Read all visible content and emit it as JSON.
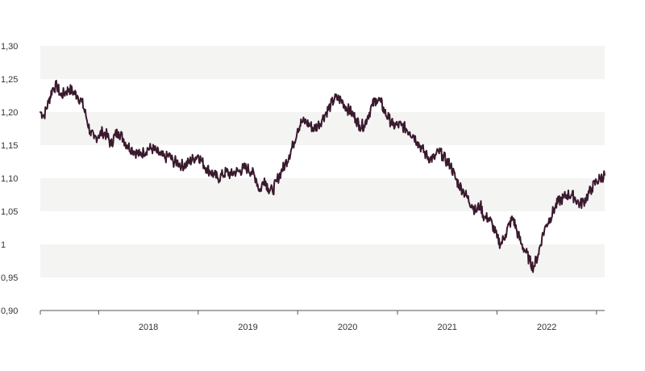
{
  "colors": {
    "line": "#3a1a2e",
    "band": "#f4f4f3",
    "axis": "#555555",
    "text": "#333333"
  },
  "chart_data": {
    "type": "line",
    "title": "",
    "xlabel": "",
    "ylabel": "",
    "ylim": [
      0.9,
      1.3
    ],
    "xlim": [
      "2017-06-01",
      "2023-01-31"
    ],
    "y_tick_values": [
      0.9,
      0.95,
      1.0,
      1.05,
      1.1,
      1.15,
      1.2,
      1.25,
      1.3
    ],
    "y_tick_labels": [
      "0,90",
      "0,95",
      "1",
      "1,05",
      "1,10",
      "1,15",
      "1,20",
      "1,25",
      "1,30"
    ],
    "x_tick_labels": [
      "2018",
      "2019",
      "2020",
      "2021",
      "2022"
    ],
    "grid": "alternating horizontal bands",
    "legend": "none",
    "series": [
      {
        "x": [
          "2017-06-01",
          "2017-06-15",
          "2017-07-01",
          "2017-07-15",
          "2017-08-01",
          "2017-08-15",
          "2017-09-01",
          "2017-09-15",
          "2017-10-01",
          "2017-10-15",
          "2017-11-01",
          "2017-11-15",
          "2017-12-01",
          "2017-12-15",
          "2018-01-01",
          "2018-01-15",
          "2018-02-01",
          "2018-02-15",
          "2018-03-01",
          "2018-03-15",
          "2018-04-01",
          "2018-04-15",
          "2018-05-01",
          "2018-05-15",
          "2018-06-01",
          "2018-06-15",
          "2018-07-01",
          "2018-07-15",
          "2018-08-01",
          "2018-08-15",
          "2018-09-01",
          "2018-09-15",
          "2018-10-01",
          "2018-10-15",
          "2018-11-01",
          "2018-11-15",
          "2018-12-01",
          "2018-12-15",
          "2019-01-01",
          "2019-01-15",
          "2019-02-01",
          "2019-02-15",
          "2019-03-01",
          "2019-03-15",
          "2019-04-01",
          "2019-04-15",
          "2019-05-01",
          "2019-05-15",
          "2019-06-01",
          "2019-06-15",
          "2019-07-01",
          "2019-07-15",
          "2019-08-01",
          "2019-08-15",
          "2019-09-01",
          "2019-09-15",
          "2019-10-01",
          "2019-10-15",
          "2019-11-01",
          "2019-11-15",
          "2019-12-01",
          "2019-12-15",
          "2020-01-01",
          "2020-01-15",
          "2020-02-01",
          "2020-02-15",
          "2020-03-01",
          "2020-03-15",
          "2020-04-01",
          "2020-04-15",
          "2020-05-01",
          "2020-05-15",
          "2020-06-01",
          "2020-06-15",
          "2020-07-01",
          "2020-07-15",
          "2020-08-01",
          "2020-08-15",
          "2020-09-01",
          "2020-09-15",
          "2020-10-01",
          "2020-10-15",
          "2020-11-01",
          "2020-11-15",
          "2020-12-01",
          "2020-12-15",
          "2021-01-01",
          "2021-01-15",
          "2021-02-01",
          "2021-02-15",
          "2021-03-01",
          "2021-03-15",
          "2021-04-01",
          "2021-04-15",
          "2021-05-01",
          "2021-05-15",
          "2021-06-01",
          "2021-06-15",
          "2021-07-01",
          "2021-07-15",
          "2021-08-01",
          "2021-08-15",
          "2021-09-01",
          "2021-09-15",
          "2021-10-01",
          "2021-10-15",
          "2021-11-01",
          "2021-11-15",
          "2021-12-01",
          "2021-12-15",
          "2022-01-01",
          "2022-01-15",
          "2022-02-01",
          "2022-02-15",
          "2022-03-01",
          "2022-03-15",
          "2022-04-01",
          "2022-04-15",
          "2022-05-01",
          "2022-05-15",
          "2022-06-01",
          "2022-06-15",
          "2022-07-01",
          "2022-07-15",
          "2022-08-01",
          "2022-08-15",
          "2022-09-01",
          "2022-09-15",
          "2022-10-01",
          "2022-10-15",
          "2022-11-01",
          "2022-11-15",
          "2022-12-01",
          "2022-12-15",
          "2023-01-01",
          "2023-01-15",
          "2023-01-31"
        ],
        "y": [
          1.2,
          1.195,
          1.215,
          1.235,
          1.24,
          1.225,
          1.23,
          1.235,
          1.23,
          1.225,
          1.215,
          1.195,
          1.17,
          1.16,
          1.165,
          1.17,
          1.165,
          1.15,
          1.165,
          1.17,
          1.16,
          1.15,
          1.145,
          1.14,
          1.135,
          1.14,
          1.145,
          1.145,
          1.14,
          1.135,
          1.13,
          1.135,
          1.125,
          1.125,
          1.12,
          1.12,
          1.125,
          1.13,
          1.135,
          1.125,
          1.115,
          1.11,
          1.105,
          1.1,
          1.105,
          1.11,
          1.105,
          1.11,
          1.11,
          1.115,
          1.115,
          1.11,
          1.1,
          1.08,
          1.1,
          1.085,
          1.08,
          1.095,
          1.11,
          1.12,
          1.135,
          1.15,
          1.175,
          1.185,
          1.185,
          1.18,
          1.175,
          1.18,
          1.19,
          1.2,
          1.21,
          1.22,
          1.22,
          1.215,
          1.205,
          1.2,
          1.19,
          1.18,
          1.18,
          1.195,
          1.21,
          1.22,
          1.215,
          1.2,
          1.19,
          1.18,
          1.18,
          1.18,
          1.175,
          1.17,
          1.165,
          1.155,
          1.145,
          1.135,
          1.13,
          1.13,
          1.14,
          1.135,
          1.125,
          1.12,
          1.1,
          1.09,
          1.08,
          1.07,
          1.06,
          1.05,
          1.06,
          1.04,
          1.04,
          1.03,
          1.01,
          1.0,
          1.015,
          1.03,
          1.04,
          1.02,
          1.0,
          0.99,
          0.975,
          0.965,
          0.985,
          1.01,
          1.03,
          1.04,
          1.055,
          1.065,
          1.07,
          1.075,
          1.075,
          1.07,
          1.06,
          1.065,
          1.075,
          1.085,
          1.095,
          1.1,
          1.105
        ]
      }
    ]
  }
}
